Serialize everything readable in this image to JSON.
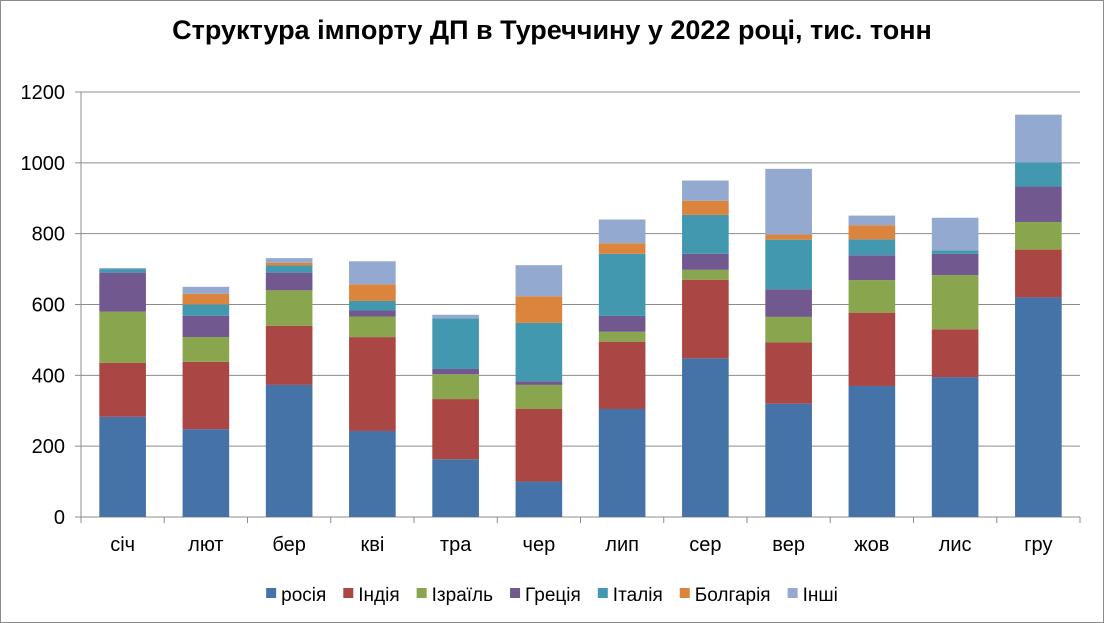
{
  "chart_data": {
    "type": "bar",
    "stacked": true,
    "title": "Структура імпорту ДП в Туреччину у 2022 році, тис. тонн",
    "xlabel": "",
    "ylabel": "",
    "ylim": [
      0,
      1200
    ],
    "yticks": [
      0,
      200,
      400,
      600,
      800,
      1000,
      1200
    ],
    "grid": true,
    "legend_position": "bottom",
    "categories": [
      "січ",
      "лют",
      "бер",
      "кві",
      "тра",
      "чер",
      "лип",
      "сер",
      "вер",
      "жов",
      "лис",
      "гру"
    ],
    "series": [
      {
        "name": "росія",
        "color": "#4572A7",
        "values": [
          283,
          248,
          373,
          243,
          163,
          100,
          305,
          448,
          320,
          370,
          395,
          620
        ]
      },
      {
        "name": "Індія",
        "color": "#AA4643",
        "values": [
          152,
          190,
          167,
          265,
          170,
          205,
          190,
          222,
          173,
          207,
          135,
          135
        ]
      },
      {
        "name": "Ізраїль",
        "color": "#89A54E",
        "values": [
          145,
          70,
          100,
          58,
          70,
          68,
          28,
          28,
          72,
          92,
          153,
          78
        ]
      },
      {
        "name": "Греція",
        "color": "#71588F",
        "values": [
          110,
          60,
          50,
          17,
          15,
          10,
          45,
          45,
          78,
          70,
          60,
          100
        ]
      },
      {
        "name": "Італія",
        "color": "#4198AF",
        "values": [
          10,
          32,
          20,
          27,
          143,
          165,
          175,
          110,
          140,
          45,
          10,
          68
        ]
      },
      {
        "name": "Болгарія",
        "color": "#DB843D",
        "values": [
          0,
          30,
          8,
          47,
          0,
          75,
          30,
          40,
          15,
          40,
          0,
          0
        ]
      },
      {
        "name": "Інші",
        "color": "#93A9CF",
        "values": [
          3,
          20,
          13,
          65,
          10,
          88,
          67,
          57,
          185,
          27,
          92,
          135
        ]
      }
    ]
  }
}
